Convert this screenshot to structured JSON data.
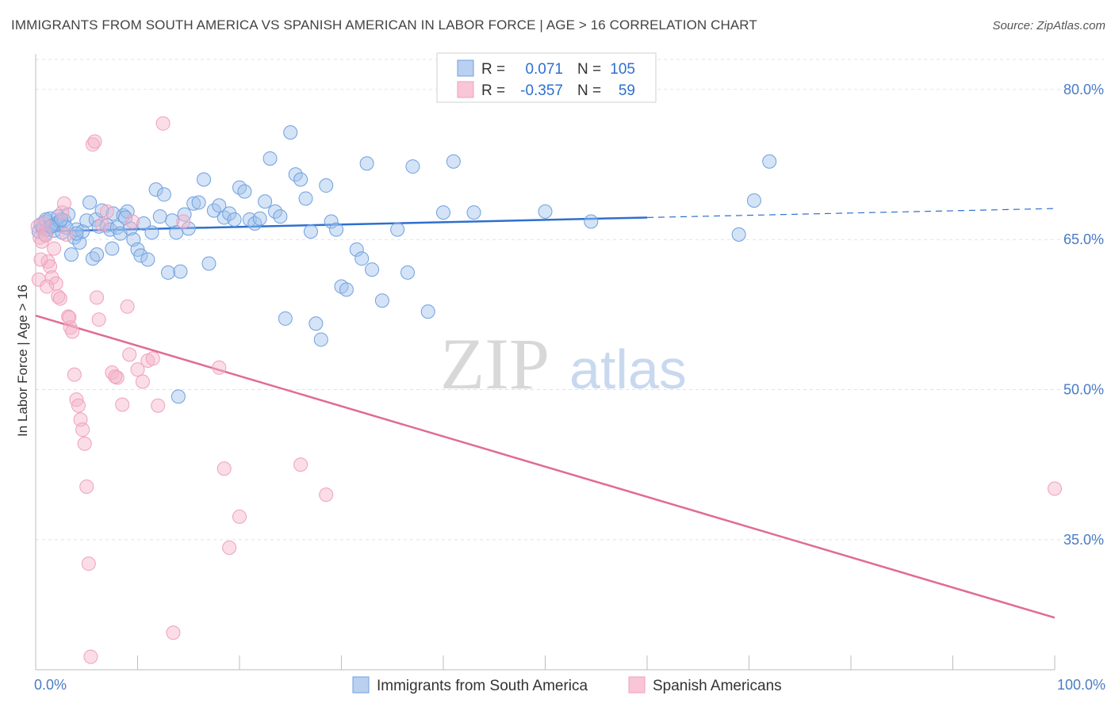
{
  "title": "IMMIGRANTS FROM SOUTH AMERICA VS SPANISH AMERICAN IN LABOR FORCE | AGE > 16 CORRELATION CHART",
  "source": "Source: ZipAtlas.com",
  "watermark": {
    "zip": "ZIP",
    "atlas": "atlas"
  },
  "colors": {
    "blue": "#6fa0e0",
    "blue_line": "#2f6fcf",
    "pink": "#f0a0bb",
    "pink_line": "#e06b95",
    "axis_text": "#4a7cc7"
  },
  "legend": {
    "rows": [
      {
        "r_label": "R =",
        "r_value": "0.071",
        "n_label": "N =",
        "n_value": "105"
      },
      {
        "r_label": "R =",
        "r_value": "-0.357",
        "n_label": "N =",
        "n_value": "59"
      }
    ]
  },
  "chart_data": {
    "type": "scatter",
    "title": "IMMIGRANTS FROM SOUTH AMERICA VS SPANISH AMERICAN IN LABOR FORCE | AGE > 16 CORRELATION CHART",
    "xlabel": "",
    "ylabel": "In Labor Force | Age > 16",
    "xlim": [
      0,
      100
    ],
    "ylim": [
      22,
      83
    ],
    "x_tick_labels": [
      "0.0%",
      "100.0%"
    ],
    "y_ticks": [
      35,
      50,
      65,
      80
    ],
    "y_tick_labels": [
      "35.0%",
      "50.0%",
      "65.0%",
      "80.0%"
    ],
    "grid": true,
    "series": [
      {
        "name": "Immigrants from South America",
        "color": "#6fa0e0",
        "points": [
          [
            0.3,
            65.8
          ],
          [
            0.5,
            66.5
          ],
          [
            0.7,
            66.2
          ],
          [
            0.9,
            65.5
          ],
          [
            1.0,
            66.8
          ],
          [
            1.2,
            66.0
          ],
          [
            1.4,
            67.1
          ],
          [
            1.6,
            66.4
          ],
          [
            1.8,
            65.9
          ],
          [
            2.0,
            66.6
          ],
          [
            2.2,
            67.3
          ],
          [
            2.4,
            66.8
          ],
          [
            2.6,
            65.7
          ],
          [
            2.8,
            66.9
          ],
          [
            3.0,
            66.2
          ],
          [
            3.2,
            67.5
          ],
          [
            3.5,
            63.5
          ],
          [
            3.8,
            65.2
          ],
          [
            4.0,
            66.0
          ],
          [
            4.3,
            64.7
          ],
          [
            4.6,
            65.8
          ],
          [
            5.0,
            66.9
          ],
          [
            5.3,
            68.7
          ],
          [
            5.6,
            63.1
          ],
          [
            5.9,
            67.0
          ],
          [
            6.2,
            66.3
          ],
          [
            6.5,
            67.9
          ],
          [
            7.0,
            66.4
          ],
          [
            7.3,
            66.0
          ],
          [
            7.6,
            67.6
          ],
          [
            8.0,
            66.2
          ],
          [
            8.3,
            65.6
          ],
          [
            8.6,
            67.4
          ],
          [
            9.0,
            67.8
          ],
          [
            9.3,
            66.1
          ],
          [
            9.6,
            65.0
          ],
          [
            10.0,
            64.0
          ],
          [
            10.3,
            63.4
          ],
          [
            10.6,
            66.6
          ],
          [
            11.0,
            63.0
          ],
          [
            11.4,
            65.7
          ],
          [
            11.8,
            70.0
          ],
          [
            12.2,
            67.3
          ],
          [
            12.6,
            69.5
          ],
          [
            13.0,
            61.7
          ],
          [
            13.4,
            66.9
          ],
          [
            13.8,
            65.7
          ],
          [
            14.2,
            61.8
          ],
          [
            14.6,
            67.5
          ],
          [
            15.0,
            66.1
          ],
          [
            15.5,
            68.6
          ],
          [
            16.0,
            68.7
          ],
          [
            16.5,
            71.0
          ],
          [
            17.0,
            62.6
          ],
          [
            17.5,
            67.9
          ],
          [
            18.0,
            68.4
          ],
          [
            18.5,
            67.2
          ],
          [
            19.0,
            67.6
          ],
          [
            19.5,
            67.0
          ],
          [
            20.0,
            70.2
          ],
          [
            20.5,
            69.8
          ],
          [
            21.0,
            67.0
          ],
          [
            21.5,
            66.6
          ],
          [
            22.0,
            67.1
          ],
          [
            22.5,
            68.8
          ],
          [
            23.0,
            73.1
          ],
          [
            23.5,
            67.8
          ],
          [
            24.0,
            67.3
          ],
          [
            24.5,
            57.1
          ],
          [
            25.0,
            75.7
          ],
          [
            25.5,
            71.5
          ],
          [
            26.0,
            71.0
          ],
          [
            26.5,
            69.1
          ],
          [
            27.0,
            65.8
          ],
          [
            27.5,
            56.6
          ],
          [
            28.0,
            55.0
          ],
          [
            28.5,
            70.4
          ],
          [
            29.0,
            66.8
          ],
          [
            29.5,
            66.0
          ],
          [
            30.0,
            60.3
          ],
          [
            30.5,
            60.0
          ],
          [
            31.5,
            64.0
          ],
          [
            32.0,
            63.1
          ],
          [
            32.5,
            72.6
          ],
          [
            33.0,
            62.0
          ],
          [
            34.0,
            58.9
          ],
          [
            35.5,
            66.0
          ],
          [
            36.5,
            61.7
          ],
          [
            37.0,
            72.3
          ],
          [
            38.5,
            57.8
          ],
          [
            40.0,
            67.7
          ],
          [
            41.0,
            72.8
          ],
          [
            43.0,
            67.7
          ],
          [
            50.0,
            67.8
          ],
          [
            54.5,
            66.8
          ],
          [
            69.0,
            65.5
          ],
          [
            70.5,
            68.9
          ],
          [
            72.0,
            72.8
          ],
          [
            14.0,
            49.3
          ],
          [
            1.0,
            67.0
          ],
          [
            1.5,
            66.3
          ],
          [
            2.5,
            67.0
          ],
          [
            4.0,
            65.6
          ],
          [
            6.0,
            63.5
          ],
          [
            7.5,
            64.1
          ],
          [
            8.8,
            67.2
          ]
        ]
      },
      {
        "name": "Spanish Americans",
        "color": "#f0a0bb",
        "points": [
          [
            0.2,
            66.3
          ],
          [
            0.4,
            65.2
          ],
          [
            0.6,
            64.8
          ],
          [
            0.8,
            66.6
          ],
          [
            1.0,
            65.4
          ],
          [
            1.2,
            62.8
          ],
          [
            1.4,
            62.3
          ],
          [
            1.6,
            61.2
          ],
          [
            1.8,
            64.1
          ],
          [
            2.0,
            60.6
          ],
          [
            2.2,
            59.3
          ],
          [
            2.4,
            59.1
          ],
          [
            2.6,
            67.7
          ],
          [
            2.8,
            68.6
          ],
          [
            3.0,
            65.5
          ],
          [
            3.2,
            57.3
          ],
          [
            3.4,
            56.2
          ],
          [
            3.6,
            55.8
          ],
          [
            3.8,
            51.5
          ],
          [
            4.0,
            49.0
          ],
          [
            4.2,
            48.4
          ],
          [
            4.4,
            47.0
          ],
          [
            4.6,
            46.0
          ],
          [
            4.8,
            44.6
          ],
          [
            5.0,
            40.3
          ],
          [
            5.2,
            32.6
          ],
          [
            5.4,
            23.3
          ],
          [
            5.6,
            74.5
          ],
          [
            5.8,
            74.8
          ],
          [
            6.0,
            59.2
          ],
          [
            6.2,
            57.0
          ],
          [
            6.5,
            66.5
          ],
          [
            7.0,
            67.8
          ],
          [
            7.5,
            51.7
          ],
          [
            8.0,
            51.2
          ],
          [
            8.5,
            48.5
          ],
          [
            9.0,
            58.3
          ],
          [
            9.5,
            66.8
          ],
          [
            10.0,
            52.0
          ],
          [
            10.5,
            50.8
          ],
          [
            11.0,
            52.9
          ],
          [
            11.5,
            53.1
          ],
          [
            12.0,
            48.4
          ],
          [
            12.5,
            76.6
          ],
          [
            13.5,
            25.7
          ],
          [
            14.5,
            66.8
          ],
          [
            18.0,
            52.2
          ],
          [
            18.5,
            42.1
          ],
          [
            19.0,
            34.2
          ],
          [
            20.0,
            37.3
          ],
          [
            26.0,
            42.5
          ],
          [
            28.5,
            39.5
          ],
          [
            100.0,
            40.1
          ],
          [
            0.3,
            61.0
          ],
          [
            0.5,
            63.0
          ],
          [
            1.1,
            60.3
          ],
          [
            3.3,
            57.2
          ],
          [
            7.8,
            51.3
          ],
          [
            9.2,
            53.5
          ]
        ]
      }
    ],
    "trend_lines": [
      {
        "series": "Immigrants from South America",
        "x": [
          0,
          60
        ],
        "y": [
          65.8,
          67.2
        ],
        "dashed_extension_to_x": 100,
        "dashed_extension_y": 68.1
      },
      {
        "series": "Spanish Americans",
        "x": [
          0,
          100
        ],
        "y": [
          57.4,
          27.2
        ]
      }
    ]
  }
}
